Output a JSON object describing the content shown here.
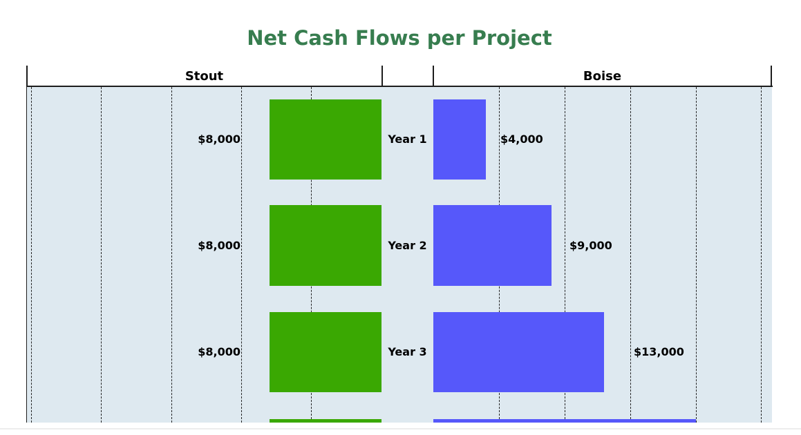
{
  "title": "Net Cash Flows per Project",
  "header": {
    "left_panel": "Stout",
    "right_panel": "Boise"
  },
  "colors": {
    "title_text": "#377D4F",
    "stout_bar": "#3AA802",
    "boise_bar": "#5658FA",
    "plot_background": "#DEE9F0",
    "axis_lines": "#1C1C1C"
  },
  "chart_data": {
    "type": "bar",
    "subtype": "diverging horizontal tornado chart; Stout bars extend left from center, Boise bars extend right",
    "title": "Net Cash Flows per Project",
    "categories": [
      "Year 1",
      "Year 2",
      "Year 3"
    ],
    "series": [
      {
        "name": "Stout",
        "color": "#3AA802",
        "values": [
          8000,
          8000,
          8000
        ],
        "labels": [
          "$8,000",
          "$8,000",
          "$8,000"
        ]
      },
      {
        "name": "Boise",
        "color": "#5658FA",
        "values": [
          4000,
          9000,
          13000
        ],
        "labels": [
          "$4,000",
          "$9,000",
          "$13,000"
        ]
      }
    ],
    "clipped_fourth_row": {
      "stout": 8000,
      "boise": 20000,
      "note": "fourth row bars are cut off by the bottom edge; no labels visible"
    },
    "axis": {
      "value_min": 0,
      "value_max": 25000,
      "gridline_step": 5000,
      "gridline_style": "dashed vertical",
      "value_axis_tick_labels_visible": false
    },
    "legend": "none",
    "grid": true,
    "plot_bg": "#DEE9F0"
  }
}
